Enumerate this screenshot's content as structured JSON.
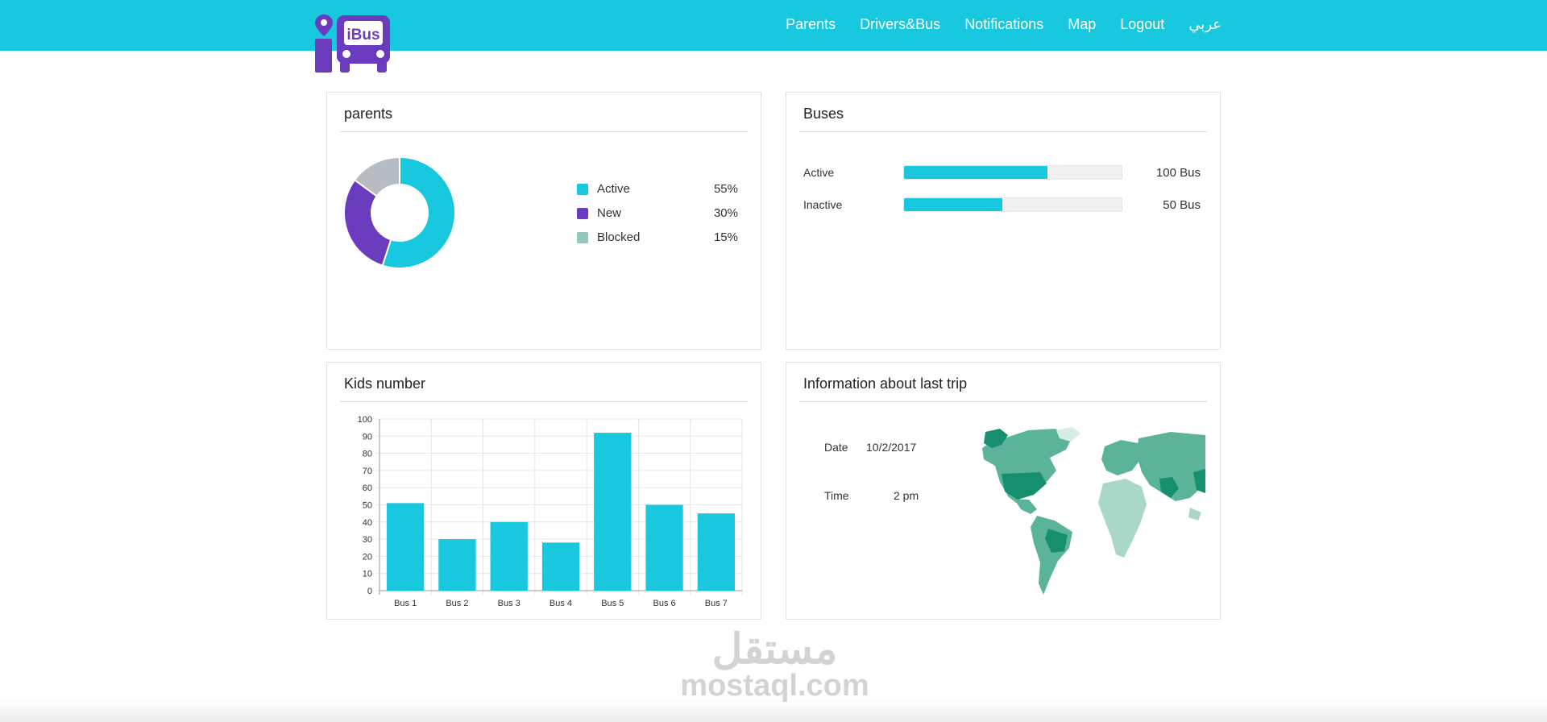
{
  "brand": {
    "logo_text": "iBus",
    "logo_purple": "#6a3bbd",
    "accent": "#17c8df"
  },
  "nav": {
    "items": [
      "Parents",
      "Drivers&Bus",
      "Notifications",
      "Map",
      "Logout",
      "عربي"
    ]
  },
  "parents_card": {
    "title": "parents",
    "legend": [
      {
        "label": "Active",
        "percent": "55%",
        "value": 55,
        "color": "#17c8df"
      },
      {
        "label": "New",
        "percent": "30%",
        "value": 30,
        "color": "#6a3bbd"
      },
      {
        "label": "Blocked",
        "percent": "15%",
        "value": 15,
        "color": "#93c9bc"
      }
    ],
    "donut_colors": [
      "#17c8df",
      "#6a3bbd",
      "#b7bcc4"
    ]
  },
  "buses_card": {
    "title": "Buses",
    "rows": [
      {
        "label": "Active",
        "value": "100 Bus",
        "fill": 0.66
      },
      {
        "label": "Inactive",
        "value": "50 Bus",
        "fill": 0.45
      }
    ]
  },
  "kids_card": {
    "title": "Kids number"
  },
  "chart_data": {
    "type": "bar",
    "title": "Kids number",
    "categories": [
      "Bus 1",
      "Bus 2",
      "Bus 3",
      "Bus 4",
      "Bus 5",
      "Bus 6",
      "Bus 7"
    ],
    "values": [
      51,
      30,
      40,
      28,
      92,
      50,
      45
    ],
    "ylim": [
      0,
      100
    ],
    "yticks": [
      0,
      10,
      20,
      30,
      40,
      50,
      60,
      70,
      80,
      90,
      100
    ],
    "grid": true,
    "color": "#17c8df"
  },
  "trip_card": {
    "title": "Information about last trip",
    "date_label": "Date",
    "date_value": "10/2/2017",
    "time_label": "Time",
    "time_value": "2 pm",
    "map_colors": [
      "#168f6f",
      "#5bb49a",
      "#a9d8c8",
      "#d6ede5"
    ]
  },
  "watermark": {
    "arabic": "مستقل",
    "latin": "mostaql.com"
  }
}
